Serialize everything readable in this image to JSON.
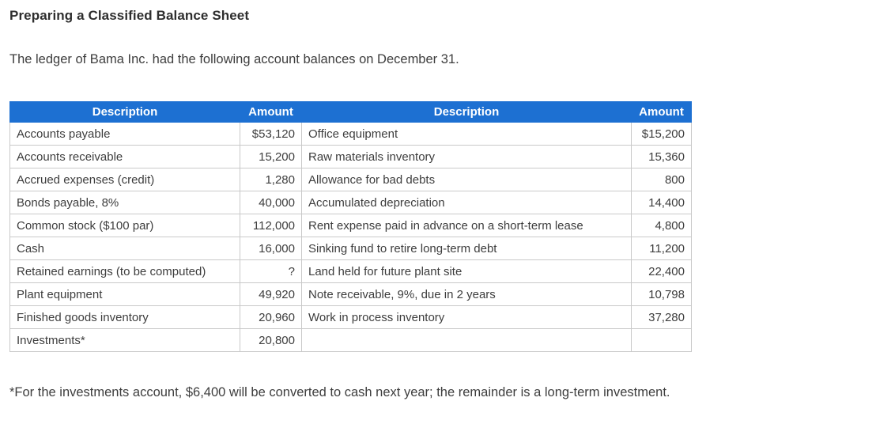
{
  "page": {
    "title": "Preparing a Classified Balance Sheet",
    "intro": "The ledger of Bama Inc. had the following account balances on December 31.",
    "footnote": "*For the investments account, $6,400 will be converted to cash next year; the remainder is a long-term investment."
  },
  "table": {
    "headers": [
      "Description",
      "Amount",
      "Description",
      "Amount"
    ],
    "rows": [
      [
        "Accounts payable",
        "$53,120",
        "Office equipment",
        "$15,200"
      ],
      [
        "Accounts receivable",
        "15,200",
        "Raw materials inventory",
        "15,360"
      ],
      [
        "Accrued expenses (credit)",
        "1,280",
        "Allowance for bad debts",
        "800"
      ],
      [
        "Bonds payable, 8%",
        "40,000",
        "Accumulated depreciation",
        "14,400"
      ],
      [
        "Common stock ($100 par)",
        "112,000",
        "Rent expense paid in advance on a short-term lease",
        "4,800"
      ],
      [
        "Cash",
        "16,000",
        "Sinking fund to retire long-term debt",
        "11,200"
      ],
      [
        "Retained earnings (to be computed)",
        "?",
        "Land held for future plant site",
        "22,400"
      ],
      [
        "Plant equipment",
        "49,920",
        "Note receivable, 9%, due in 2 years",
        "10,798"
      ],
      [
        "Finished goods inventory",
        "20,960",
        "Work in process inventory",
        "37,280"
      ],
      [
        "Investments*",
        "20,800",
        "",
        ""
      ]
    ]
  },
  "colors": {
    "header_bg": "#1d70d2",
    "header_text": "#ffffff",
    "body_text": "#3d3d3d",
    "border": "#c9c9c9"
  }
}
